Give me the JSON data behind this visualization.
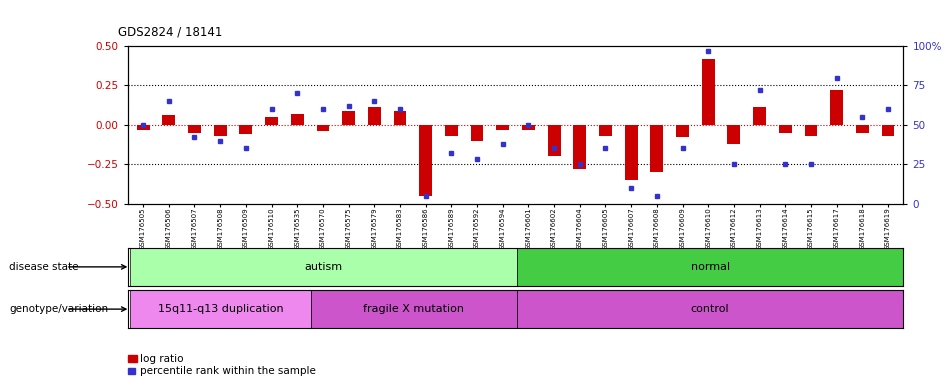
{
  "title": "GDS2824 / 18141",
  "samples": [
    "GSM176505",
    "GSM176506",
    "GSM176507",
    "GSM176508",
    "GSM176509",
    "GSM176510",
    "GSM176535",
    "GSM176570",
    "GSM176575",
    "GSM176579",
    "GSM176583",
    "GSM176586",
    "GSM176589",
    "GSM176592",
    "GSM176594",
    "GSM176601",
    "GSM176602",
    "GSM176604",
    "GSM176605",
    "GSM176607",
    "GSM176608",
    "GSM176609",
    "GSM176610",
    "GSM176612",
    "GSM176613",
    "GSM176614",
    "GSM176615",
    "GSM176617",
    "GSM176618",
    "GSM176619"
  ],
  "log_ratio": [
    -0.03,
    0.06,
    -0.05,
    -0.07,
    -0.06,
    0.05,
    0.07,
    -0.04,
    0.09,
    0.11,
    0.09,
    -0.45,
    -0.07,
    -0.1,
    -0.03,
    -0.03,
    -0.2,
    -0.28,
    -0.07,
    -0.35,
    -0.3,
    -0.08,
    0.42,
    -0.12,
    0.11,
    -0.05,
    -0.07,
    0.22,
    -0.05,
    -0.07
  ],
  "percentile": [
    50,
    65,
    42,
    40,
    35,
    60,
    70,
    60,
    62,
    65,
    60,
    5,
    32,
    28,
    38,
    50,
    35,
    25,
    35,
    10,
    5,
    35,
    97,
    25,
    72,
    25,
    25,
    80,
    55,
    60
  ],
  "bar_color": "#cc0000",
  "dot_color": "#3333cc",
  "ylim_left": [
    -0.5,
    0.5
  ],
  "ylim_right": [
    0,
    100
  ],
  "yticks_left": [
    -0.5,
    -0.25,
    0.0,
    0.25,
    0.5
  ],
  "yticks_right": [
    0,
    25,
    50,
    75,
    100
  ],
  "hline_zero_color": "#cc0000",
  "hline_dotted_color": "#000000",
  "disease_state_groups": [
    {
      "label": "autism",
      "start": 0,
      "end": 15,
      "color": "#aaffaa"
    },
    {
      "label": "normal",
      "start": 15,
      "end": 30,
      "color": "#44cc44"
    }
  ],
  "genotype_groups": [
    {
      "label": "15q11-q13 duplication",
      "start": 0,
      "end": 7,
      "color": "#ee88ee"
    },
    {
      "label": "fragile X mutation",
      "start": 7,
      "end": 15,
      "color": "#cc55cc"
    },
    {
      "label": "control",
      "start": 15,
      "end": 30,
      "color": "#cc55cc"
    }
  ],
  "legend": [
    {
      "label": "log ratio",
      "color": "#cc0000"
    },
    {
      "label": "percentile rank within the sample",
      "color": "#3333cc"
    }
  ],
  "annotation_labels": [
    "disease state",
    "genotype/variation"
  ],
  "bg_color": "#ffffff",
  "plot_bg_color": "#ffffff",
  "bar_width": 0.5
}
